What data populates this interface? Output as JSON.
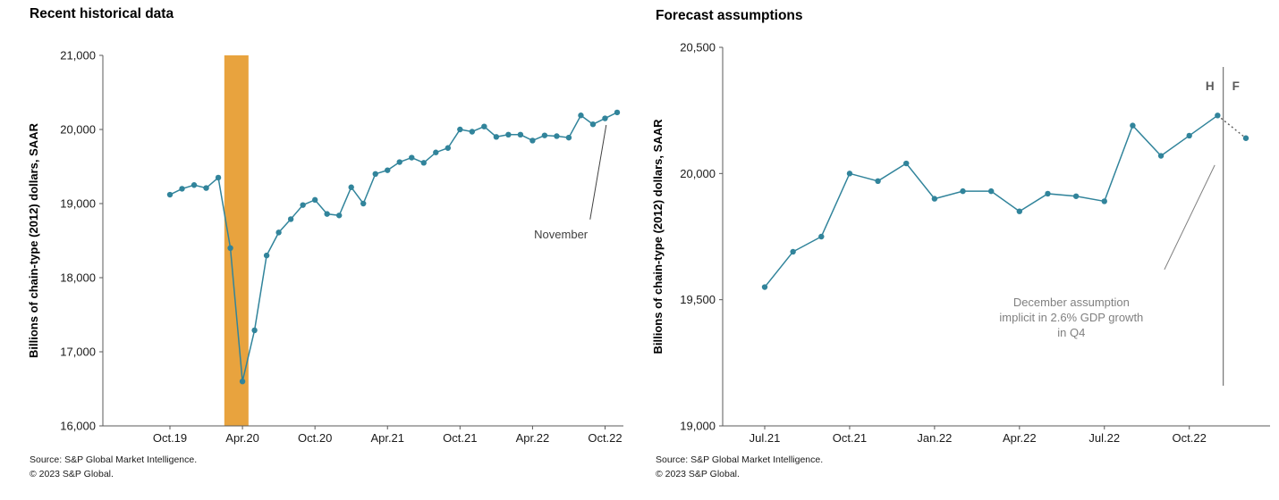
{
  "chart_data": [
    {
      "type": "line",
      "title": "Recent historical data",
      "ylabel": "Billions of chain-type (2012) dollars, SAAR",
      "xlabel": "",
      "ylim": [
        16000,
        21000
      ],
      "ytick_step": 1000,
      "grid": false,
      "legend": "none",
      "line_color": "#31849B",
      "x": [
        "Oct.19",
        "Nov.19",
        "Dec.19",
        "Jan.20",
        "Feb.20",
        "Mar.20",
        "Apr.20",
        "May.20",
        "Jun.20",
        "Jul.20",
        "Aug.20",
        "Sep.20",
        "Oct.20",
        "Nov.20",
        "Dec.20",
        "Jan.21",
        "Feb.21",
        "Mar.21",
        "Apr.21",
        "May.21",
        "Jun.21",
        "Jul.21",
        "Aug.21",
        "Sep.21",
        "Oct.21",
        "Nov.21",
        "Dec.21",
        "Jan.22",
        "Feb.22",
        "Mar.22",
        "Apr.22",
        "May.22",
        "Jun.22",
        "Jul.22",
        "Aug.22",
        "Sep.22",
        "Oct.22",
        "Nov.22"
      ],
      "values": [
        19120,
        19200,
        19250,
        19210,
        19350,
        18400,
        16600,
        17290,
        18300,
        18610,
        18790,
        18980,
        19050,
        18860,
        18840,
        19220,
        19000,
        19400,
        19450,
        19560,
        19620,
        19550,
        19690,
        19750,
        20000,
        19970,
        20040,
        19900,
        19930,
        19930,
        19850,
        19920,
        19910,
        19890,
        20190,
        20070,
        20150,
        20230
      ],
      "xticks": [
        "Oct.19",
        "Apr.20",
        "Oct.20",
        "Apr.21",
        "Oct.21",
        "Apr.22",
        "Oct.22"
      ],
      "recession_band": {
        "start": "Feb.20",
        "end": "Apr.20",
        "color": "#E8A33E"
      },
      "annotations": [
        {
          "lines": [
            "November"
          ],
          "color": "#404040",
          "xf": 0.88,
          "yf": 0.484,
          "leader": {
            "x1f": 0.936,
            "y1f": 0.443,
            "x2f": 0.967,
            "y2f": 0.188
          }
        }
      ],
      "source": [
        "Source: S&P Global Market Intelligence.",
        "© 2023 S&P Global."
      ]
    },
    {
      "type": "line",
      "title": "Forecast assumptions",
      "ylabel": "Billions of chain-type (2012) dollars, SAAR",
      "xlabel": "",
      "ylim": [
        19000,
        20500
      ],
      "ytick_step": 500,
      "grid": false,
      "legend": "none",
      "line_color": "#31849B",
      "x": [
        "Jul.21",
        "Aug.21",
        "Sep.21",
        "Oct.21",
        "Nov.21",
        "Dec.21",
        "Jan.22",
        "Feb.22",
        "Mar.22",
        "Apr.22",
        "May.22",
        "Jun.22",
        "Jul.22",
        "Aug.22",
        "Sep.22",
        "Oct.22",
        "Nov.22",
        "Dec.22"
      ],
      "values": [
        19550,
        19690,
        19750,
        20000,
        19970,
        20040,
        19900,
        19930,
        19930,
        19850,
        19920,
        19910,
        19890,
        20190,
        20070,
        20150,
        20230,
        20140
      ],
      "xticks": [
        "Jul.21",
        "Oct.21",
        "Jan.22",
        "Apr.22",
        "Jul.22",
        "Oct.22"
      ],
      "forecast": {
        "start": "Dec.22",
        "divider_after": "Nov.22",
        "divider_labels": [
          "H",
          "F"
        ],
        "divider_color": "#595959"
      },
      "annotations": [
        {
          "lines": [
            "December assumption",
            "implicit in 2.6% GDP growth",
            "in Q4"
          ],
          "color": "#808080",
          "xf": 0.637,
          "yf": 0.715,
          "leader": {
            "x1f": 0.807,
            "y1f": 0.587,
            "x2f": 0.899,
            "y2f": 0.311
          }
        }
      ],
      "source": [
        "Source: S&P Global Market Intelligence.",
        "© 2023 S&P Global."
      ]
    }
  ]
}
